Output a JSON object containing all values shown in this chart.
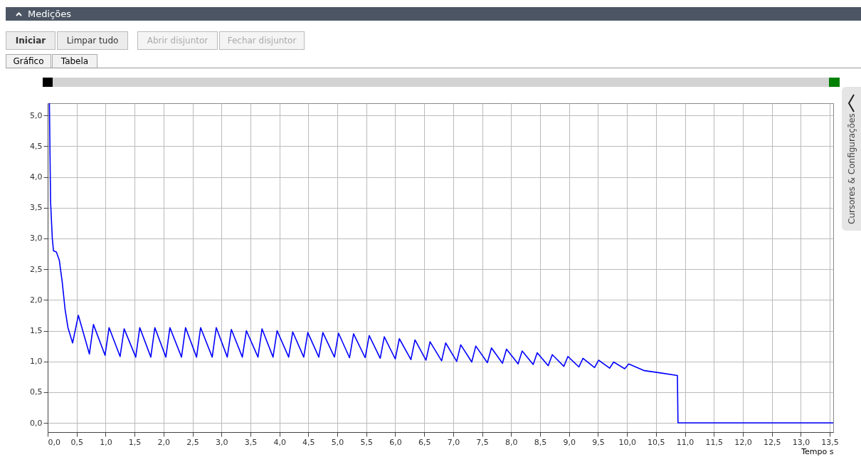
{
  "chart_data": {
    "type": "line",
    "title": "Medições",
    "xlabel": "Tempo  s",
    "annotations": [
      "Iniciar",
      "Limpar tudo",
      "Abrir disjuntor",
      "Fechar disjuntor",
      "Gráfico",
      "Tabela",
      "Cursores & Configurações"
    ],
    "series": [
      {
        "color": "#0000ff",
        "x": [
          0.03,
          0.05,
          0.08,
          0.1,
          0.15,
          0.2,
          0.25,
          0.3,
          0.35,
          0.43,
          0.53,
          0.72,
          0.79,
          0.99,
          1.06,
          1.25,
          1.32,
          1.52,
          1.59,
          1.78,
          1.85,
          2.04,
          2.11,
          2.31,
          2.38,
          2.57,
          2.64,
          2.84,
          2.91,
          3.1,
          3.17,
          3.36,
          3.43,
          3.63,
          3.7,
          3.89,
          3.96,
          4.16,
          4.23,
          4.42,
          4.49,
          4.68,
          4.75,
          4.95,
          5.02,
          5.21,
          5.28,
          5.48,
          5.55,
          5.74,
          5.81,
          6.0,
          6.07,
          6.27,
          6.34,
          6.53,
          6.6,
          6.8,
          6.87,
          7.06,
          7.13,
          7.32,
          7.39,
          7.59,
          7.66,
          7.85,
          7.92,
          8.12,
          8.19,
          8.38,
          8.45,
          8.64,
          8.71,
          8.91,
          8.98,
          9.17,
          9.24,
          9.44,
          9.51,
          9.7,
          9.77,
          9.96,
          10.03,
          10.3,
          10.6,
          10.87,
          10.88,
          13.56
        ],
        "values": [
          5.2,
          3.6,
          3.0,
          2.8,
          2.78,
          2.65,
          2.3,
          1.85,
          1.55,
          1.3,
          1.75,
          1.12,
          1.6,
          1.1,
          1.55,
          1.08,
          1.53,
          1.07,
          1.55,
          1.07,
          1.55,
          1.07,
          1.55,
          1.07,
          1.55,
          1.07,
          1.55,
          1.07,
          1.55,
          1.07,
          1.52,
          1.07,
          1.5,
          1.07,
          1.53,
          1.07,
          1.5,
          1.07,
          1.48,
          1.07,
          1.47,
          1.07,
          1.47,
          1.07,
          1.46,
          1.06,
          1.45,
          1.06,
          1.42,
          1.05,
          1.4,
          1.04,
          1.37,
          1.03,
          1.35,
          1.02,
          1.32,
          1.01,
          1.3,
          1.0,
          1.27,
          0.99,
          1.25,
          0.98,
          1.22,
          0.97,
          1.2,
          0.96,
          1.17,
          0.95,
          1.14,
          0.93,
          1.11,
          0.92,
          1.08,
          0.91,
          1.05,
          0.9,
          1.02,
          0.89,
          0.99,
          0.88,
          0.96,
          0.85,
          0.81,
          0.77,
          0,
          0
        ]
      }
    ],
    "xlim": [
      0,
      13.56
    ],
    "ylim": [
      -0.15,
      5.2
    ],
    "xticks": [
      {
        "value": 0,
        "label": "0,0"
      },
      {
        "value": 0.5,
        "label": "0,5"
      },
      {
        "value": 1,
        "label": "1,0"
      },
      {
        "value": 1.5,
        "label": "1,5"
      },
      {
        "value": 2,
        "label": "2,0"
      },
      {
        "value": 2.5,
        "label": "2,5"
      },
      {
        "value": 3,
        "label": "3,0"
      },
      {
        "value": 3.5,
        "label": "3,5"
      },
      {
        "value": 4,
        "label": "4,0"
      },
      {
        "value": 4.5,
        "label": "4,5"
      },
      {
        "value": 5,
        "label": "5,0"
      },
      {
        "value": 5.5,
        "label": "5,5"
      },
      {
        "value": 6,
        "label": "6,0"
      },
      {
        "value": 6.5,
        "label": "6,5"
      },
      {
        "value": 7,
        "label": "7,0"
      },
      {
        "value": 7.5,
        "label": "7,5"
      },
      {
        "value": 8,
        "label": "8,0"
      },
      {
        "value": 8.5,
        "label": "8,5"
      },
      {
        "value": 9,
        "label": "9,0"
      },
      {
        "value": 9.5,
        "label": "9,5"
      },
      {
        "value": 10,
        "label": "10,0"
      },
      {
        "value": 10.5,
        "label": "10,5"
      },
      {
        "value": 11,
        "label": "11,0"
      },
      {
        "value": 11.5,
        "label": "11,5"
      },
      {
        "value": 12,
        "label": "12,0"
      },
      {
        "value": 12.5,
        "label": "12,5"
      },
      {
        "value": 13,
        "label": "13,0"
      },
      {
        "value": 13.5,
        "label": "13,5"
      }
    ],
    "yticks": [
      {
        "value": 0,
        "label": "0,0"
      },
      {
        "value": 0.5,
        "label": "0,5"
      },
      {
        "value": 1,
        "label": "1,0"
      },
      {
        "value": 1.5,
        "label": "1,5"
      },
      {
        "value": 2,
        "label": "2,0"
      },
      {
        "value": 2.5,
        "label": "2,5"
      },
      {
        "value": 3,
        "label": "3,0"
      },
      {
        "value": 3.5,
        "label": "3,5"
      },
      {
        "value": 4,
        "label": "4,0"
      },
      {
        "value": 4.5,
        "label": "4,5"
      },
      {
        "value": 5,
        "label": "5,0"
      }
    ],
    "grid": true,
    "marker": "none",
    "line_style": "solid"
  }
}
